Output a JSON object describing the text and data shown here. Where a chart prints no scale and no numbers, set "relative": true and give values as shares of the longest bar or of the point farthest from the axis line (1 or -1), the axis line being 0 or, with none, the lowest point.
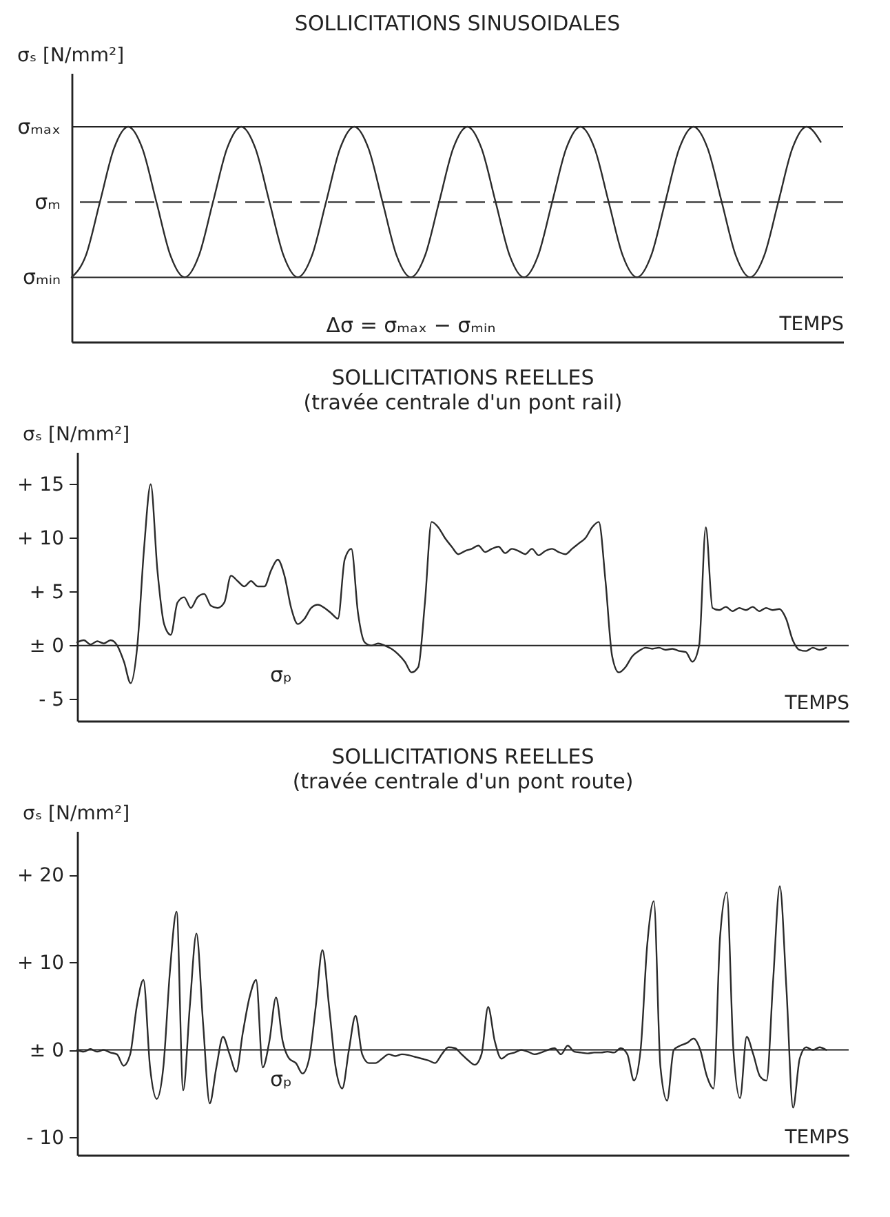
{
  "chart_data": [
    {
      "type": "line",
      "title": "SOLLICITATIONS SINUSOIDALES",
      "xlabel": "TEMPS",
      "ylabel": "σₛ  [N/mm²]",
      "relative": true,
      "categories": [
        null,
        null,
        null,
        null,
        null,
        null,
        null,
        null,
        null,
        null,
        null,
        null,
        null,
        null,
        null,
        null,
        null,
        null,
        null,
        null,
        null,
        null,
        null,
        null,
        null,
        null,
        null,
        null,
        null,
        null,
        null,
        null,
        null,
        null,
        null,
        null,
        null,
        null,
        null,
        null,
        null,
        null,
        null,
        null,
        null,
        null,
        null,
        null,
        null,
        null,
        null,
        null,
        null,
        null
      ],
      "series": [
        {
          "color": "#2b2b2b",
          "values": [
            0.3,
            0.4,
            0.65,
            0.9,
            1,
            0.9,
            0.65,
            0.4,
            0.3,
            0.4,
            0.65,
            0.9,
            1,
            0.9,
            0.65,
            0.4,
            0.3,
            0.4,
            0.65,
            0.9,
            1,
            0.9,
            0.65,
            0.4,
            0.3,
            0.4,
            0.65,
            0.9,
            1,
            0.9,
            0.65,
            0.4,
            0.3,
            0.4,
            0.65,
            0.9,
            1,
            0.9,
            0.65,
            0.4,
            0.3,
            0.4,
            0.65,
            0.9,
            1,
            0.9,
            0.65,
            0.4,
            0.3,
            0.4,
            0.65,
            0.9,
            1,
            0.93
          ]
        }
      ],
      "ref_lines": [
        {
          "axis": "y",
          "value": 1,
          "label": "σₘₐₓ"
        },
        {
          "axis": "y",
          "value": 0.65,
          "label": "σₘ",
          "line_style": "dashed"
        },
        {
          "axis": "y",
          "value": 0.3,
          "label": "σₘᵢₙ"
        }
      ],
      "annotations": [
        "Δσ = σₘₐₓ − σₘᵢₙ"
      ]
    },
    {
      "type": "line",
      "title": "SOLLICITATIONS REELLES",
      "subtitle": "(travée centrale d'un pont rail)",
      "xlabel": "TEMPS",
      "ylabel": "σₛ  [N/mm²]",
      "categories": [
        null,
        null,
        null,
        null,
        null,
        null,
        null,
        null,
        null,
        null,
        null,
        null,
        null,
        null,
        null,
        null,
        null,
        null,
        null,
        null,
        null,
        null,
        null,
        null,
        null,
        null,
        null,
        null,
        null,
        null,
        null,
        null,
        null,
        null,
        null,
        null,
        null,
        null,
        null,
        null,
        null,
        null,
        null,
        null,
        null,
        null,
        null,
        null,
        null,
        null,
        null,
        null,
        null,
        null,
        null,
        null,
        null,
        null,
        null,
        null,
        null,
        null,
        null,
        null,
        null,
        null,
        null,
        null,
        null,
        null,
        null,
        null,
        null,
        null,
        null,
        null,
        null,
        null,
        null,
        null,
        null,
        null,
        null,
        null,
        null,
        null,
        null,
        null,
        null,
        null,
        null,
        null,
        null,
        null,
        null,
        null,
        null,
        null,
        null,
        null,
        null,
        null,
        null,
        null,
        null,
        null,
        null,
        null,
        null,
        null,
        null,
        null,
        null
      ],
      "series": [
        {
          "color": "#2b2b2b",
          "values": [
            0.3,
            0.5,
            0.1,
            0.4,
            0.2,
            0.5,
            0,
            -1.5,
            -3.5,
            0,
            9,
            15,
            7,
            2,
            1,
            4,
            4.5,
            3.5,
            4.5,
            4.8,
            3.7,
            3.5,
            4,
            6.5,
            6,
            5.5,
            6,
            5.5,
            5.5,
            7,
            8,
            6.5,
            3.5,
            2,
            2.5,
            3.5,
            3.8,
            3.5,
            3,
            2.5,
            8,
            9,
            3,
            0.3,
            0,
            0.2,
            0,
            -0.3,
            -0.8,
            -1.5,
            -2.5,
            -2,
            4,
            11.5,
            11,
            10,
            9.2,
            8.5,
            8.8,
            9,
            9.3,
            8.7,
            9,
            9.2,
            8.6,
            9,
            8.8,
            8.5,
            9,
            8.4,
            8.8,
            9,
            8.7,
            8.5,
            9,
            9.5,
            10,
            11,
            11.5,
            6,
            -1,
            -2.5,
            -2,
            -1,
            -0.5,
            -0.2,
            -0.3,
            -0.2,
            -0.4,
            -0.3,
            -0.5,
            -0.6,
            -1.5,
            0,
            11,
            3.5,
            3.3,
            3.6,
            3.2,
            3.5,
            3.3,
            3.6,
            3.2,
            3.5,
            3.3,
            3.4,
            2.5,
            0.5,
            -0.4,
            -0.5,
            -0.2,
            -0.4,
            -0.2
          ]
        }
      ],
      "ylim": [
        -7,
        18
      ],
      "yticks": [
        {
          "value": 15,
          "label": "+ 15"
        },
        {
          "value": 10,
          "label": "+ 10"
        },
        {
          "value": 5,
          "label": "+ 5"
        },
        {
          "value": 0,
          "label": "± 0"
        },
        {
          "value": -5,
          "label": "- 5"
        }
      ],
      "ref_lines": [
        {
          "axis": "y",
          "value": 0,
          "label": "σₚ"
        }
      ]
    },
    {
      "type": "line",
      "title": "SOLLICITATIONS REELLES",
      "subtitle": "(travée centrale d'un pont route)",
      "xlabel": "TEMPS",
      "ylabel": "σₛ  [N/mm²]",
      "categories": [
        null,
        null,
        null,
        null,
        null,
        null,
        null,
        null,
        null,
        null,
        null,
        null,
        null,
        null,
        null,
        null,
        null,
        null,
        null,
        null,
        null,
        null,
        null,
        null,
        null,
        null,
        null,
        null,
        null,
        null,
        null,
        null,
        null,
        null,
        null,
        null,
        null,
        null,
        null,
        null,
        null,
        null,
        null,
        null,
        null,
        null,
        null,
        null,
        null,
        null,
        null,
        null,
        null,
        null,
        null,
        null,
        null,
        null,
        null,
        null,
        null,
        null,
        null,
        null,
        null,
        null,
        null,
        null,
        null,
        null,
        null,
        null,
        null,
        null,
        null,
        null,
        null,
        null,
        null,
        null,
        null,
        null,
        null,
        null,
        null,
        null,
        null,
        null,
        null,
        null,
        null,
        null,
        null,
        null,
        null,
        null,
        null,
        null,
        null,
        null,
        null,
        null,
        null,
        null,
        null,
        null,
        null,
        null,
        null,
        null,
        null,
        null,
        null,
        null
      ],
      "series": [
        {
          "color": "#2b2b2b",
          "values": [
            0,
            -0.2,
            0.1,
            -0.2,
            0,
            -0.3,
            -0.5,
            -1.8,
            -0.5,
            5,
            8,
            -2,
            -5.6,
            -2,
            9,
            15.8,
            -4.6,
            5,
            13.3,
            3,
            -6.1,
            -2,
            1.5,
            -0.5,
            -2.5,
            2,
            6,
            8,
            -2,
            1,
            6,
            1,
            -1,
            -1.5,
            -2.7,
            -1,
            5,
            11.4,
            5,
            -2,
            -4.4,
            0,
            3.9,
            -0.5,
            -1.5,
            -1.5,
            -1,
            -0.5,
            -0.7,
            -0.5,
            -0.6,
            -0.8,
            -1,
            -1.2,
            -1.5,
            -0.5,
            0.3,
            0.2,
            -0.5,
            -1.2,
            -1.7,
            -0.5,
            4.9,
            1,
            -1,
            -0.5,
            -0.3,
            0,
            -0.2,
            -0.5,
            -0.3,
            0,
            0.2,
            -0.5,
            0.5,
            -0.2,
            -0.3,
            -0.4,
            -0.3,
            -0.3,
            -0.2,
            -0.3,
            0.2,
            -0.5,
            -3.5,
            0,
            12,
            17,
            -2,
            -5.8,
            0,
            0.5,
            0.8,
            1.3,
            0,
            -3,
            -4.4,
            13,
            18,
            0,
            -5.5,
            1.5,
            -0.5,
            -3,
            -3.5,
            8,
            18.7,
            7,
            -6.6,
            -1,
            0.3,
            0,
            0.3,
            0
          ]
        }
      ],
      "ylim": [
        -12,
        25
      ],
      "yticks": [
        {
          "value": 20,
          "label": "+ 20"
        },
        {
          "value": 10,
          "label": "+ 10"
        },
        {
          "value": 0,
          "label": "± 0"
        },
        {
          "value": -10,
          "label": "- 10"
        }
      ],
      "ref_lines": [
        {
          "axis": "y",
          "value": 0,
          "label": "σₚ"
        }
      ]
    }
  ]
}
